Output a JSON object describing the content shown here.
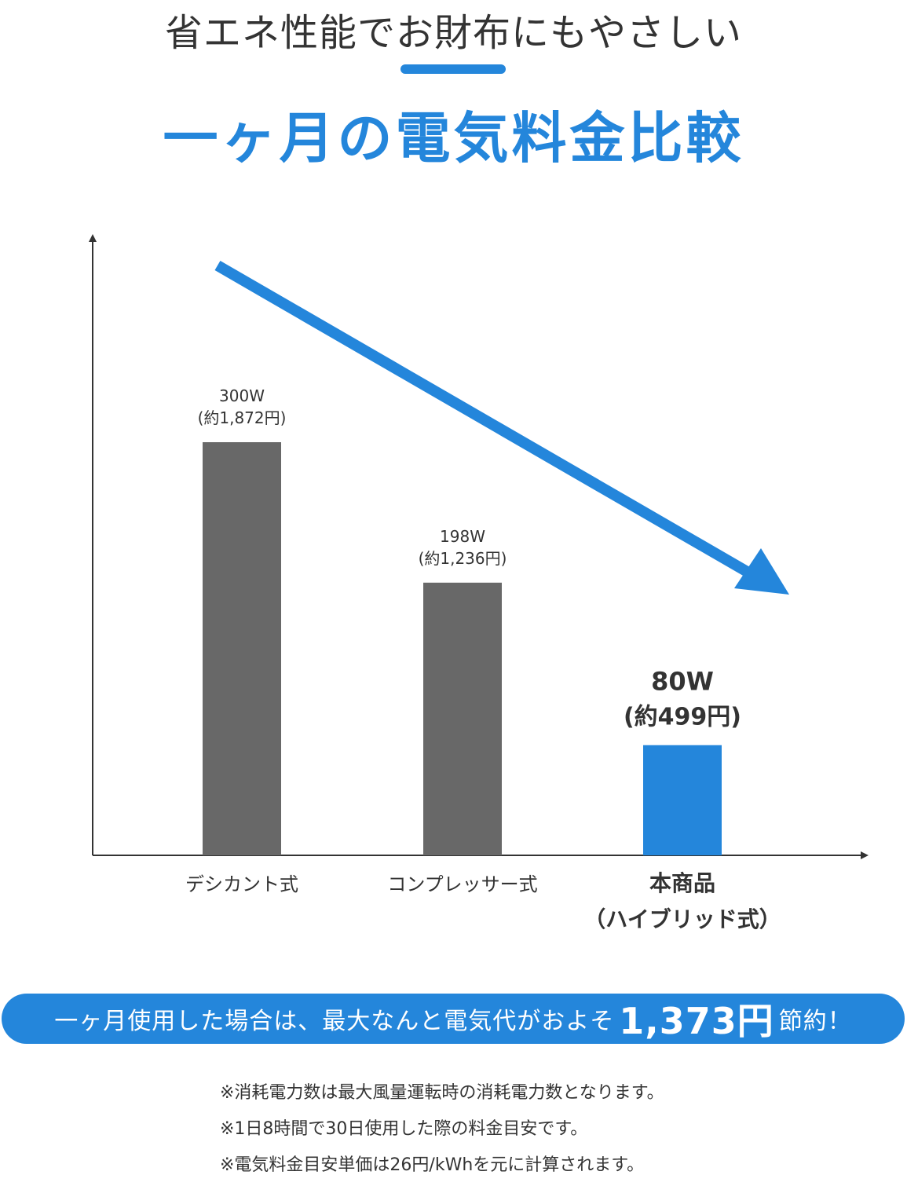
{
  "header": {
    "subtitle": "省エネ性能でお財布にもやさしい",
    "headline": "一ヶ月の電気料金比較"
  },
  "colors": {
    "accent": "#2486db",
    "gray_bar": "#686868",
    "axis": "#333333"
  },
  "chart_data": {
    "type": "bar",
    "categories": [
      "デシカント式",
      "コンプレッサー式",
      "本商品\n（ハイブリッド式）"
    ],
    "series": [
      {
        "values": [
          300,
          198,
          80
        ]
      }
    ],
    "value_labels": [
      "300W",
      "198W",
      "80W"
    ],
    "cost_labels": [
      "(約1,872円)",
      "(約1,236円)",
      "(約499円)"
    ],
    "highlight_index": 2,
    "ylim": [
      0,
      420
    ],
    "grid": false,
    "annotation": "downward-trend-arrow"
  },
  "banner": {
    "prefix": "一ヶ月使用した場合は、最大なんと電気代がおよそ",
    "amount": "1,373円",
    "suffix": "節約！"
  },
  "notes": [
    "※消耗電力数は最大風量運転時の消耗電力数となります。",
    "※1日8時間で30日使用した際の料金目安です。",
    "※電気料金目安単価は26円/kWhを元に計算されます。"
  ]
}
